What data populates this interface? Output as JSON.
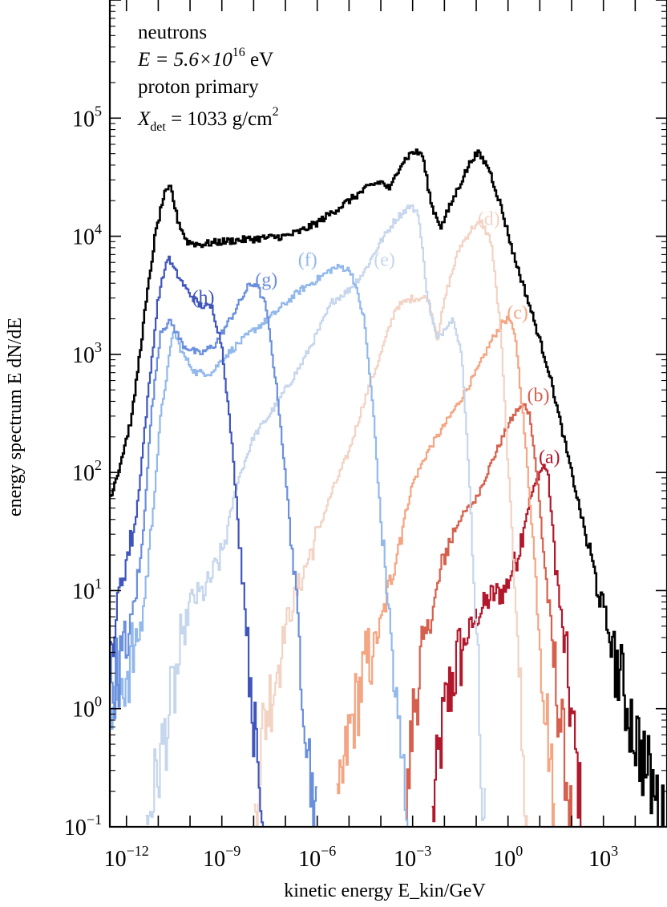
{
  "chart_data": {
    "type": "line",
    "step": true,
    "xscale": "log",
    "yscale": "log",
    "xlim": [
      3e-13,
      100000.0
    ],
    "ylim": [
      0.1,
      1000000.0
    ],
    "xlabel": "kinetic energy E_kin/GeV",
    "ylabel": "energy spectrum E dN/dE",
    "xticks": [
      {
        "value": 1e-12,
        "base": "10",
        "exp": "−12"
      },
      {
        "value": 1e-09,
        "base": "10",
        "exp": "−9"
      },
      {
        "value": 1e-06,
        "base": "10",
        "exp": "−6"
      },
      {
        "value": 0.001,
        "base": "10",
        "exp": "−3"
      },
      {
        "value": 1,
        "base": "10",
        "exp": "0"
      },
      {
        "value": 1000.0,
        "base": "10",
        "exp": "3"
      }
    ],
    "yticks": [
      {
        "value": 0.1,
        "base": "10",
        "exp": "−1"
      },
      {
        "value": 1,
        "base": "10",
        "exp": "0"
      },
      {
        "value": 10,
        "base": "10",
        "exp": "1"
      },
      {
        "value": 100,
        "base": "10",
        "exp": "2"
      },
      {
        "value": 1000,
        "base": "10",
        "exp": "3"
      },
      {
        "value": 10000,
        "base": "10",
        "exp": "4"
      },
      {
        "value": 100000,
        "base": "10",
        "exp": "5"
      }
    ],
    "annotation": {
      "line1": "neutrons",
      "line2_prefix": "E = 5.6×10",
      "line2_exp": "16",
      "line2_suffix": " eV",
      "line3": "proton primary",
      "line4_prefix": "X",
      "line4_sub": "det",
      "line4_mid": " = 1033 g/cm",
      "line4_exp": "2"
    },
    "series": [
      {
        "name": "(a)",
        "color": "#b2182b",
        "label_at": [
          20,
          120
        ],
        "points": [
          [
            0.004,
            0.1
          ],
          [
            0.006,
            0.3
          ],
          [
            0.01,
            0.9
          ],
          [
            0.02,
            2
          ],
          [
            0.05,
            4
          ],
          [
            0.1,
            6
          ],
          [
            0.3,
            9
          ],
          [
            0.8,
            10
          ],
          [
            2,
            20
          ],
          [
            5,
            60
          ],
          [
            10,
            100
          ],
          [
            14,
            115
          ],
          [
            18,
            100
          ],
          [
            30,
            20
          ],
          [
            50,
            5
          ],
          [
            80,
            1.5
          ],
          [
            150,
            0.3
          ],
          [
            220,
            0.1
          ]
        ]
      },
      {
        "name": "(b)",
        "color": "#d6604d",
        "label_at": [
          9,
          400
        ],
        "points": [
          [
            0.0006,
            0.1
          ],
          [
            0.001,
            0.8
          ],
          [
            0.002,
            3
          ],
          [
            0.005,
            8
          ],
          [
            0.01,
            20
          ],
          [
            0.03,
            40
          ],
          [
            0.1,
            60
          ],
          [
            0.3,
            120
          ],
          [
            1,
            250
          ],
          [
            2,
            340
          ],
          [
            3.5,
            370
          ],
          [
            5,
            300
          ],
          [
            8,
            100
          ],
          [
            15,
            15
          ],
          [
            30,
            2
          ],
          [
            60,
            0.4
          ],
          [
            100,
            0.1
          ]
        ]
      },
      {
        "name": "(c)",
        "color": "#f4a582",
        "label_at": [
          2,
          2000
        ],
        "points": [
          [
            4e-06,
            0.1
          ],
          [
            1e-05,
            0.6
          ],
          [
            3e-05,
            2
          ],
          [
            0.0001,
            5
          ],
          [
            0.0003,
            20
          ],
          [
            0.001,
            80
          ],
          [
            0.003,
            150
          ],
          [
            0.01,
            250
          ],
          [
            0.03,
            400
          ],
          [
            0.1,
            700
          ],
          [
            0.3,
            1300
          ],
          [
            0.7,
            1900
          ],
          [
            1.1,
            2000
          ],
          [
            1.8,
            1300
          ],
          [
            3,
            300
          ],
          [
            6,
            30
          ],
          [
            10,
            4
          ],
          [
            20,
            0.5
          ],
          [
            30,
            0.1
          ]
        ]
      },
      {
        "name": "(d)",
        "color": "#f2d3c4",
        "label_at": [
          0.25,
          12500
        ],
        "points": [
          [
            1e-08,
            0.1
          ],
          [
            2e-08,
            0.7
          ],
          [
            5e-08,
            2
          ],
          [
            1e-07,
            5
          ],
          [
            3e-07,
            12
          ],
          [
            1e-06,
            30
          ],
          [
            3e-06,
            70
          ],
          [
            1e-05,
            150
          ],
          [
            3e-05,
            400
          ],
          [
            0.0001,
            1000
          ],
          [
            0.0003,
            2500
          ],
          [
            0.001,
            3000
          ],
          [
            0.003,
            3000
          ],
          [
            0.006,
            1400
          ],
          [
            0.012,
            3500
          ],
          [
            0.03,
            8000
          ],
          [
            0.08,
            12000
          ],
          [
            0.15,
            13000
          ],
          [
            0.3,
            9000
          ],
          [
            0.6,
            1500
          ],
          [
            1,
            120
          ],
          [
            2,
            5
          ],
          [
            3,
            0.3
          ],
          [
            4,
            0.1
          ]
        ]
      },
      {
        "name": "(e)",
        "color": "#c6d6ec",
        "label_at": [
          0.00013,
          5600
        ],
        "points": [
          [
            4e-12,
            0.1
          ],
          [
            1e-11,
            0.3
          ],
          [
            4e-11,
            2
          ],
          [
            1e-10,
            8
          ],
          [
            3e-10,
            10
          ],
          [
            1e-09,
            20
          ],
          [
            3e-09,
            80
          ],
          [
            1e-08,
            200
          ],
          [
            3e-08,
            300
          ],
          [
            1e-07,
            500
          ],
          [
            3e-07,
            800
          ],
          [
            1e-06,
            1500
          ],
          [
            3e-06,
            2800
          ],
          [
            1e-05,
            3500
          ],
          [
            3e-05,
            5000
          ],
          [
            0.0001,
            9000
          ],
          [
            0.0003,
            14000
          ],
          [
            0.0008,
            18000
          ],
          [
            0.0015,
            16000
          ],
          [
            0.003,
            3000
          ],
          [
            0.006,
            1300
          ],
          [
            0.012,
            1800
          ],
          [
            0.02,
            2000
          ],
          [
            0.035,
            1000
          ],
          [
            0.06,
            100
          ],
          [
            0.1,
            5
          ],
          [
            0.15,
            0.3
          ],
          [
            0.2,
            0.1
          ]
        ]
      },
      {
        "name": "(f)",
        "color": "#92b8ec",
        "label_at": [
          5e-07,
          5600
        ],
        "points": [
          [
            3e-13,
            1
          ],
          [
            1e-12,
            2
          ],
          [
            3e-12,
            5
          ],
          [
            6e-12,
            30
          ],
          [
            1.2e-11,
            300
          ],
          [
            3e-11,
            1600
          ],
          [
            6e-11,
            1000
          ],
          [
            1.5e-10,
            700
          ],
          [
            5e-10,
            700
          ],
          [
            1e-09,
            900
          ],
          [
            3e-09,
            1200
          ],
          [
            1e-08,
            1600
          ],
          [
            3e-08,
            2000
          ],
          [
            1e-07,
            2700
          ],
          [
            3e-07,
            3500
          ],
          [
            1e-06,
            4300
          ],
          [
            3e-06,
            5300
          ],
          [
            6e-06,
            5500
          ],
          [
            1.2e-05,
            5000
          ],
          [
            3e-05,
            2000
          ],
          [
            6e-05,
            300
          ],
          [
            0.0001,
            40
          ],
          [
            0.0002,
            5
          ],
          [
            0.0003,
            1
          ],
          [
            0.0005,
            0.3
          ],
          [
            0.0008,
            0.1
          ]
        ]
      },
      {
        "name": "(g)",
        "color": "#6a8fdd",
        "label_at": [
          2.5e-08,
          3800
        ],
        "points": [
          [
            3e-13,
            1.5
          ],
          [
            1e-12,
            3
          ],
          [
            3e-12,
            20
          ],
          [
            6e-12,
            300
          ],
          [
            1.2e-11,
            1600
          ],
          [
            2.5e-11,
            1900
          ],
          [
            6e-11,
            1200
          ],
          [
            2e-10,
            1000
          ],
          [
            6e-10,
            1200
          ],
          [
            1.5e-09,
            1800
          ],
          [
            3e-09,
            2500
          ],
          [
            7e-09,
            3800
          ],
          [
            1.2e-08,
            4000
          ],
          [
            2.5e-08,
            2500
          ],
          [
            6e-08,
            400
          ],
          [
            1.5e-07,
            30
          ],
          [
            3e-07,
            3
          ],
          [
            6e-07,
            0.3
          ],
          [
            1e-06,
            0.1
          ]
        ]
      },
      {
        "name": "(h)",
        "color": "#3f55bb",
        "label_at": [
          2.6e-10,
          2700
        ],
        "points": [
          [
            3e-13,
            2
          ],
          [
            6e-13,
            10
          ],
          [
            2e-12,
            40
          ],
          [
            5e-12,
            500
          ],
          [
            1e-11,
            3000
          ],
          [
            2e-11,
            6700
          ],
          [
            3.5e-11,
            5000
          ],
          [
            8e-11,
            3500
          ],
          [
            2e-10,
            2600
          ],
          [
            5e-10,
            2500
          ],
          [
            1e-09,
            1200
          ],
          [
            2e-09,
            200
          ],
          [
            4e-09,
            20
          ],
          [
            8e-09,
            2
          ],
          [
            1.3e-08,
            0.3
          ],
          [
            2e-08,
            0.1
          ]
        ]
      },
      {
        "name": "",
        "color": "#000000",
        "label_at": null,
        "points": [
          [
            3e-13,
            60
          ],
          [
            6e-13,
            110
          ],
          [
            1.5e-12,
            300
          ],
          [
            4e-12,
            2500
          ],
          [
            8e-12,
            10000
          ],
          [
            1.5e-11,
            22000
          ],
          [
            2.5e-11,
            26000
          ],
          [
            4e-11,
            14000
          ],
          [
            8e-11,
            9000
          ],
          [
            2e-10,
            8500
          ],
          [
            1e-09,
            9000
          ],
          [
            1e-08,
            9500
          ],
          [
            1e-07,
            10000
          ],
          [
            3e-07,
            11000
          ],
          [
            1e-06,
            13000
          ],
          [
            1e-05,
            20000
          ],
          [
            5e-05,
            27000
          ],
          [
            0.0001,
            29000
          ],
          [
            0.0002,
            25000
          ],
          [
            0.0004,
            40000
          ],
          [
            0.001,
            52000
          ],
          [
            0.002,
            50000
          ],
          [
            0.004,
            18000
          ],
          [
            0.008,
            12000
          ],
          [
            0.015,
            18000
          ],
          [
            0.04,
            32000
          ],
          [
            0.08,
            47000
          ],
          [
            0.12,
            50000
          ],
          [
            0.25,
            38000
          ],
          [
            0.6,
            18000
          ],
          [
            1.5,
            7000
          ],
          [
            5,
            2500
          ],
          [
            20,
            700
          ],
          [
            100,
            100
          ],
          [
            600,
            12
          ],
          [
            3000,
            2
          ],
          [
            10000,
            0.6
          ],
          [
            30000,
            0.25
          ],
          [
            80000,
            0.1
          ]
        ]
      }
    ]
  }
}
